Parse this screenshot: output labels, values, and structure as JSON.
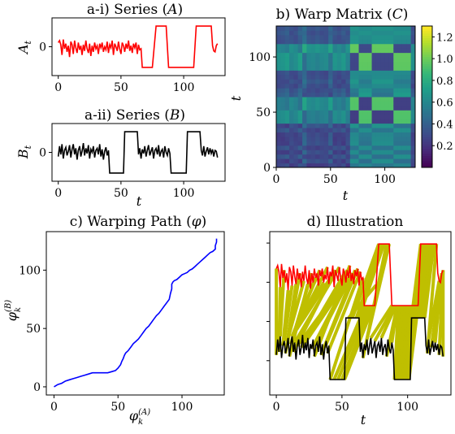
{
  "chart_data": [
    {
      "id": "a1",
      "type": "line",
      "title": "a-i) Series (A)",
      "ylabel": "A_t",
      "xlim": [
        -5,
        133
      ],
      "ylim": [
        -1.4,
        1.4
      ],
      "xticks": [
        0,
        50,
        100
      ],
      "yticks": [
        0
      ],
      "series": [
        {
          "color": "#ff0000",
          "x": [
            0,
            1,
            2,
            3,
            4,
            5,
            6,
            7,
            8,
            9,
            10,
            11,
            12,
            13,
            14,
            15,
            16,
            17,
            18,
            19,
            20,
            21,
            22,
            23,
            24,
            25,
            26,
            27,
            28,
            29,
            30,
            31,
            32,
            33,
            34,
            35,
            36,
            37,
            38,
            39,
            40,
            41,
            42,
            43,
            44,
            45,
            46,
            47,
            48,
            49,
            50,
            51,
            52,
            53,
            54,
            55,
            56,
            57,
            58,
            59,
            60,
            61,
            62,
            63,
            64,
            65,
            66,
            67,
            68,
            70,
            72,
            75,
            78,
            80,
            82,
            84,
            86,
            88,
            90,
            92,
            95,
            98,
            100,
            102,
            104,
            106,
            108,
            110,
            112,
            114,
            116,
            118,
            120,
            122,
            123,
            124,
            125,
            126,
            127
          ],
          "y": [
            0.2,
            0.3,
            0.1,
            -0.4,
            0.35,
            -0.1,
            0.15,
            -0.25,
            0.05,
            -0.5,
            0.25,
            0.1,
            -0.35,
            0.3,
            -0.05,
            -0.3,
            0.2,
            -0.15,
            0.05,
            -0.4,
            0.1,
            -0.2,
            0.3,
            -0.1,
            -0.3,
            0.15,
            -0.45,
            0.05,
            -0.25,
            0.2,
            -0.1,
            0.05,
            -0.35,
            0.15,
            -0.05,
            0.2,
            -0.25,
            0.0,
            -0.15,
            0.25,
            -0.3,
            0.1,
            -0.05,
            0.3,
            -0.4,
            0.15,
            0.0,
            -0.2,
            0.25,
            -0.1,
            -0.35,
            0.2,
            0.05,
            -0.25,
            0.15,
            -0.1,
            0.3,
            -0.2,
            0.05,
            -0.3,
            0.15,
            -0.05,
            0.2,
            -0.35,
            0.1,
            -0.15,
            -0.1,
            -1.0,
            -1.0,
            -1.0,
            -1.0,
            -1.0,
            1.0,
            1.0,
            1.0,
            1.0,
            1.0,
            -1.0,
            -1.0,
            -1.0,
            -1.0,
            -1.0,
            -1.0,
            -1.0,
            -1.0,
            -1.0,
            -1.0,
            1.0,
            1.0,
            1.0,
            1.0,
            1.0,
            1.0,
            1.0,
            0.05,
            -0.2,
            -0.25,
            0.05,
            0.15
          ]
        }
      ]
    },
    {
      "id": "a2",
      "type": "line",
      "title": "a-ii) Series (B)",
      "xlabel": "t",
      "ylabel": "B_t",
      "xlim": [
        -5,
        133
      ],
      "ylim": [
        -1.4,
        1.4
      ],
      "xticks": [
        0,
        50,
        100
      ],
      "yticks": [
        0
      ],
      "series": [
        {
          "color": "#000000",
          "x": [
            0,
            1,
            2,
            3,
            4,
            5,
            6,
            7,
            8,
            9,
            10,
            11,
            12,
            13,
            14,
            15,
            16,
            17,
            18,
            19,
            20,
            21,
            22,
            23,
            24,
            25,
            26,
            27,
            28,
            29,
            30,
            31,
            32,
            33,
            34,
            35,
            36,
            37,
            38,
            39,
            40,
            41,
            42,
            44,
            46,
            48,
            50,
            52,
            53,
            54,
            56,
            58,
            60,
            62,
            63,
            64,
            65,
            66,
            67,
            68,
            69,
            70,
            71,
            72,
            73,
            74,
            75,
            76,
            77,
            78,
            79,
            80,
            81,
            82,
            83,
            84,
            85,
            86,
            87,
            88,
            89,
            90,
            92,
            94,
            96,
            98,
            100,
            102,
            103,
            104,
            106,
            108,
            110,
            112,
            113,
            114,
            115,
            116,
            117,
            118,
            119,
            120,
            121,
            122,
            123,
            124,
            125,
            126,
            127
          ],
          "y": [
            -0.2,
            0.3,
            -0.1,
            0.4,
            -0.3,
            0.1,
            0.25,
            -0.15,
            0.05,
            0.35,
            -0.25,
            0.15,
            0.4,
            -0.1,
            0.2,
            -0.35,
            0.1,
            0.3,
            -0.2,
            0.05,
            0.45,
            -0.15,
            0.2,
            -0.05,
            0.35,
            -0.3,
            0.15,
            0.0,
            0.3,
            -0.25,
            0.1,
            0.2,
            -0.1,
            0.4,
            -0.2,
            0.15,
            -0.35,
            0.05,
            0.25,
            -0.15,
            0.1,
            -1.0,
            -1.0,
            -1.0,
            -1.0,
            -1.0,
            -1.0,
            -1.0,
            1.0,
            1.0,
            1.0,
            1.0,
            1.0,
            1.0,
            1.0,
            -0.1,
            0.2,
            -0.3,
            0.15,
            -0.05,
            0.3,
            -0.2,
            0.1,
            0.35,
            -0.15,
            0.05,
            0.25,
            -0.3,
            0.1,
            0.2,
            -0.1,
            0.35,
            -0.2,
            0.05,
            0.15,
            -0.25,
            0.3,
            0.0,
            -0.15,
            0.2,
            -0.05,
            -1.0,
            -1.0,
            -1.0,
            -1.0,
            -1.0,
            -1.0,
            -1.0,
            1.0,
            1.0,
            1.0,
            1.0,
            1.0,
            1.0,
            1.0,
            0.1,
            -0.15,
            0.3,
            -0.2,
            0.05,
            0.25,
            -0.1,
            0.2,
            -0.05,
            0.15,
            -0.2,
            0.1,
            0.05,
            -0.25
          ]
        }
      ]
    },
    {
      "id": "b",
      "type": "heatmap",
      "title": "b) Warp Matrix (C)",
      "xlabel": "t",
      "ylabel": "t",
      "xlim": [
        0,
        128
      ],
      "ylim": [
        0,
        128
      ],
      "xticks": [
        0,
        50,
        100
      ],
      "yticks": [
        0,
        50,
        100
      ],
      "colorbar_ticks": [
        0.2,
        0.4,
        0.6,
        0.8,
        1.0,
        1.2
      ],
      "colorbar_range": [
        0.0,
        1.3
      ],
      "colormap": "viridis"
    },
    {
      "id": "c",
      "type": "line",
      "title": "c) Warping Path (φ)",
      "xlabel": "φ_k^(A)",
      "ylabel": "φ_k^(B)",
      "xlim": [
        -6,
        133
      ],
      "ylim": [
        -7,
        133
      ],
      "xticks": [
        0,
        50,
        100
      ],
      "yticks": [
        0,
        50,
        100
      ],
      "series": [
        {
          "color": "#0000ff",
          "x": [
            0,
            3,
            6,
            9,
            12,
            15,
            18,
            21,
            24,
            27,
            30,
            33,
            36,
            39,
            42,
            45,
            48,
            50,
            52,
            53,
            54,
            55,
            56,
            58,
            60,
            62,
            64,
            66,
            68,
            70,
            72,
            74,
            76,
            78,
            80,
            82,
            84,
            86,
            88,
            90,
            91,
            92,
            92,
            93,
            94,
            96,
            98,
            100,
            102,
            104,
            106,
            108,
            110,
            112,
            114,
            116,
            118,
            120,
            122,
            124,
            126,
            126,
            127,
            127
          ],
          "y": [
            0,
            2,
            3,
            5,
            6,
            7,
            8,
            9,
            10,
            11,
            12,
            12,
            12,
            12,
            12,
            13,
            14,
            16,
            19,
            22,
            24,
            27,
            29,
            31,
            34,
            37,
            39,
            41,
            44,
            47,
            50,
            52,
            55,
            58,
            61,
            63,
            66,
            69,
            72,
            75,
            80,
            84,
            88,
            90,
            91,
            92,
            94,
            96,
            97,
            98,
            100,
            101,
            103,
            105,
            107,
            109,
            111,
            113,
            115,
            116,
            118,
            121,
            124,
            127
          ]
        }
      ]
    },
    {
      "id": "d",
      "type": "line",
      "title": "d) Illustration",
      "xlabel": "t",
      "xlim": [
        -5,
        133
      ],
      "xticks": [
        0,
        50,
        100
      ],
      "fill_color": "#bfbf00",
      "series": [
        {
          "color": "#ff0000",
          "offset": 2.4,
          "ref": "a1"
        },
        {
          "color": "#000000",
          "offset": 0.0,
          "ref": "a2"
        }
      ]
    }
  ]
}
